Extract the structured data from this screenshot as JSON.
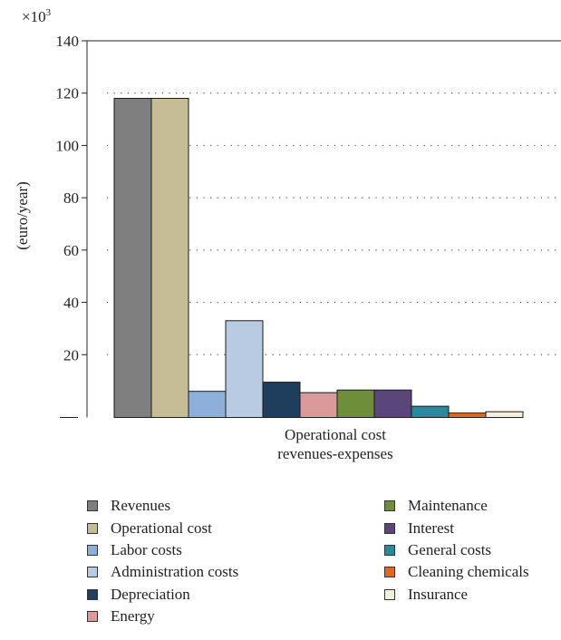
{
  "chart_data": {
    "type": "bar",
    "multiplier_base": "×10",
    "multiplier_exp": "3",
    "ylabel": "(euro/year)",
    "xlabel_lines": [
      "Operational cost",
      "revenues-expenses"
    ],
    "ylim": [
      -4,
      140
    ],
    "y_ticks": [
      20,
      40,
      60,
      80,
      100,
      120,
      140
    ],
    "grid": "dotted horizontal",
    "legend_position": "bottom",
    "series": [
      {
        "name": "Revenues",
        "value": 118,
        "color": "#7f7f7f"
      },
      {
        "name": "Operational cost",
        "value": 118,
        "color": "#c6bd96"
      },
      {
        "name": "Labor costs",
        "value": 6,
        "color": "#8db0d9"
      },
      {
        "name": "Administration costs",
        "value": 33,
        "color": "#b9cbe3"
      },
      {
        "name": "Depreciation",
        "value": 9.5,
        "color": "#1f3d5c"
      },
      {
        "name": "Energy",
        "value": 5.5,
        "color": "#d99a9a"
      },
      {
        "name": "Maintenance",
        "value": 6.5,
        "color": "#6f8e3a"
      },
      {
        "name": "Interest",
        "value": 6.5,
        "color": "#5b467a"
      },
      {
        "name": "General costs",
        "value": 0.3,
        "color": "#2a8a9c"
      },
      {
        "name": "Cleaning chemicals",
        "value": -2.3,
        "color": "#e0691e"
      },
      {
        "name": "Insurance",
        "value": -1.8,
        "color": "#f5f0dc"
      }
    ]
  }
}
